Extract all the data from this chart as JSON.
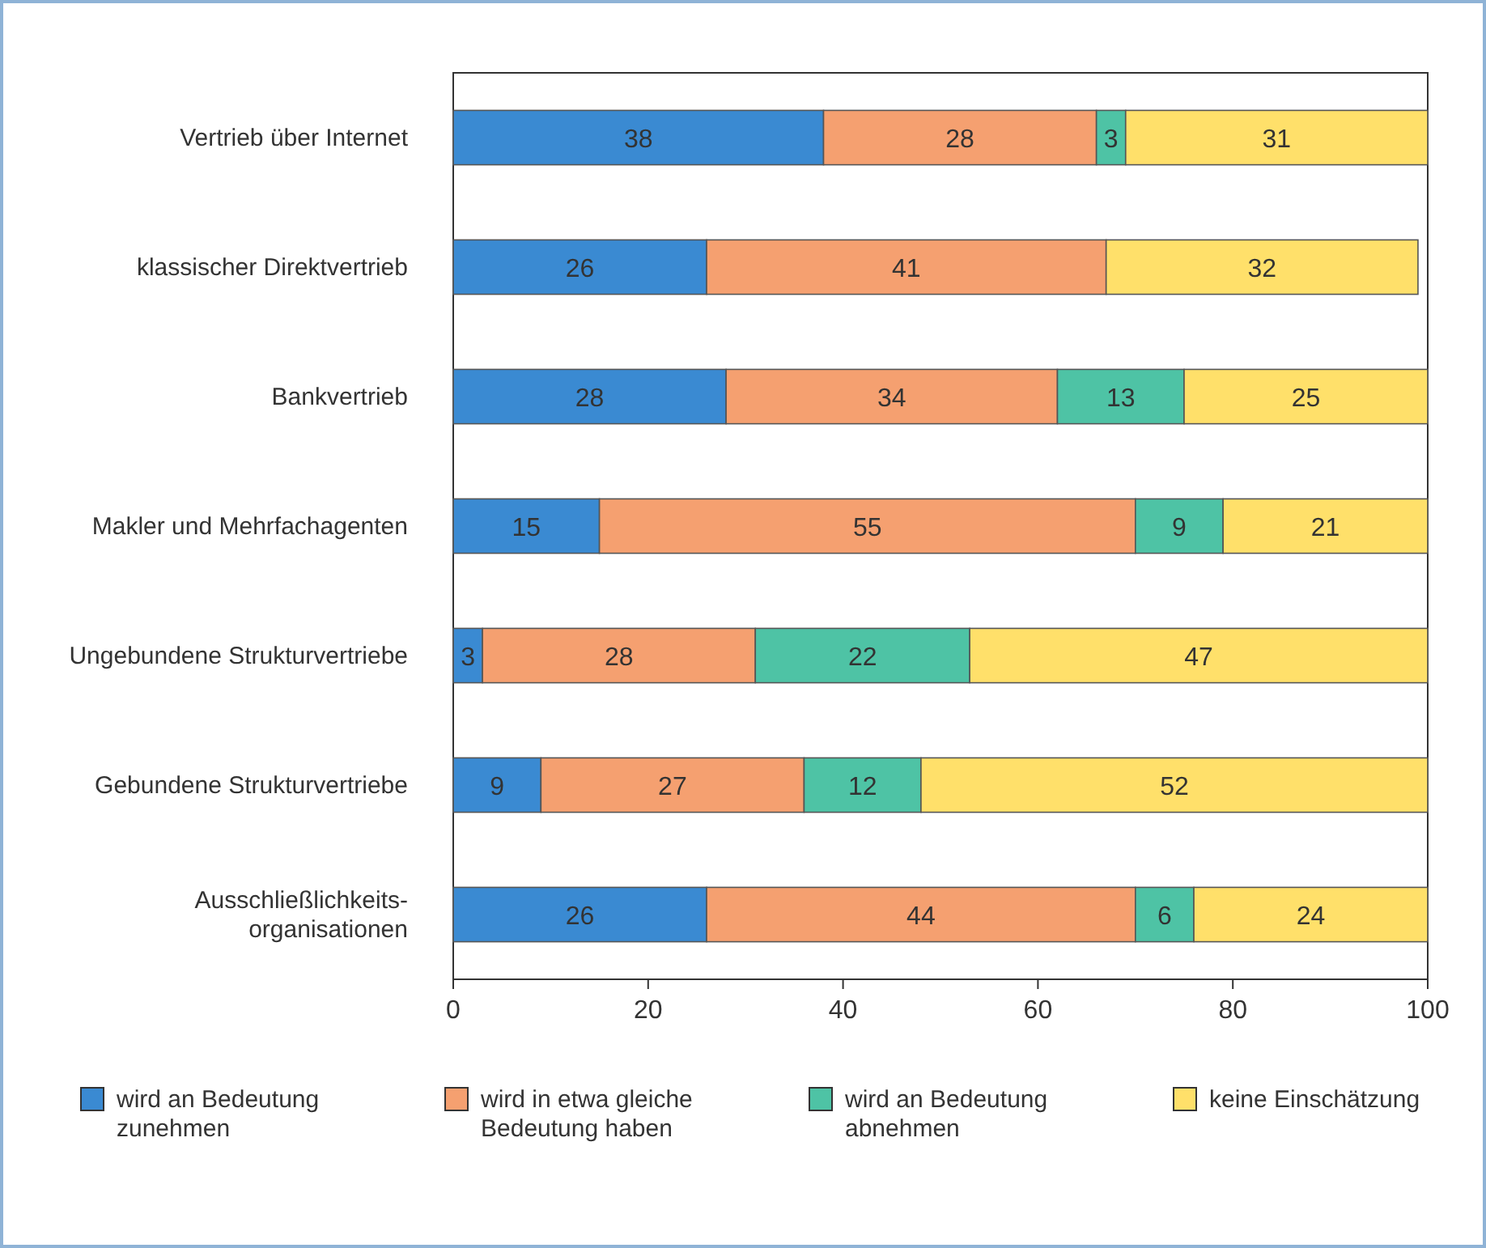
{
  "chart_data": {
    "type": "bar",
    "orientation": "horizontal",
    "stacked": true,
    "categories": [
      "Vertrieb über Internet",
      "klassischer Direktvertrieb",
      "Bankvertrieb",
      "Makler und Mehrfachagenten",
      "Ungebundene Strukturvertriebe",
      "Gebundene Strukturvertriebe",
      "Ausschließlichkeits-organisationen"
    ],
    "series": [
      {
        "name": "wird an Bedeutung zunehmen",
        "color": "#3a8ad2",
        "values": [
          38,
          26,
          28,
          15,
          3,
          9,
          26
        ]
      },
      {
        "name": "wird in etwa gleiche Bedeutung haben",
        "color": "#f5a070",
        "values": [
          28,
          41,
          34,
          55,
          28,
          27,
          44
        ]
      },
      {
        "name": "wird an Bedeutung abnehmen",
        "color": "#4ec3a5",
        "values": [
          3,
          null,
          13,
          9,
          22,
          12,
          6
        ]
      },
      {
        "name": "keine Einschätzung",
        "color": "#ffe06a",
        "values": [
          31,
          32,
          25,
          21,
          47,
          52,
          24
        ]
      }
    ],
    "xlim": [
      0,
      100
    ],
    "xticks": [
      0,
      20,
      40,
      60,
      80,
      100
    ],
    "data_labels": true,
    "legend": "bottom"
  }
}
